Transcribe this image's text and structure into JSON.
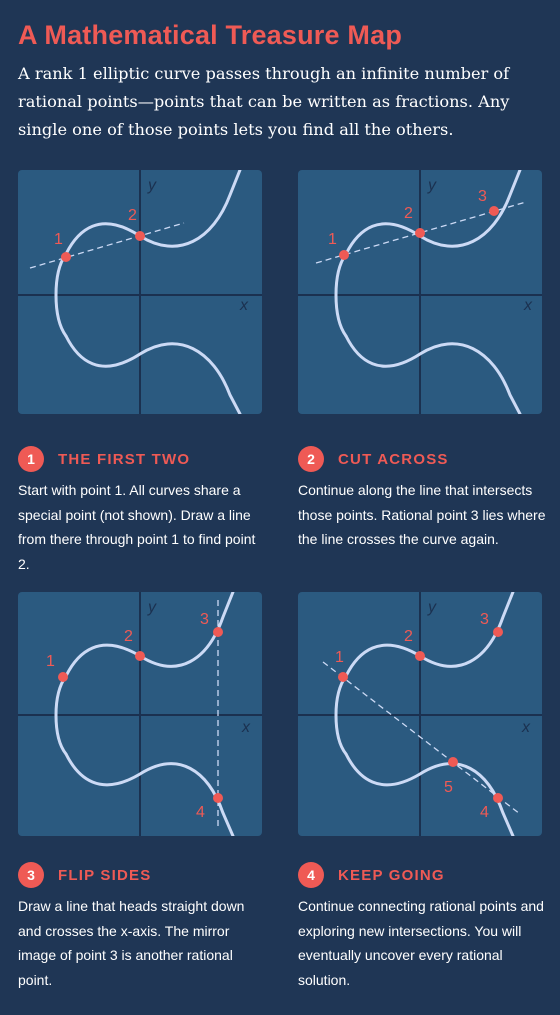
{
  "title": "A Mathematical Treasure Map",
  "intro": "A rank 1 elliptic curve passes through an infinite number of rational points—points that can be written as fractions. Any single one of those points lets you find all the others.",
  "axis_labels": {
    "x": "x",
    "y": "y"
  },
  "colors": {
    "background": "#1f3655",
    "panel": "#2b5a80",
    "curve": "#ccdaf5",
    "axis": "#1b3150",
    "accent": "#ef5a55",
    "text": "#ffffff"
  },
  "panels": [
    {
      "points": [
        "1",
        "2"
      ],
      "line": "secant"
    },
    {
      "points": [
        "1",
        "2",
        "3"
      ],
      "line": "secant"
    },
    {
      "points": [
        "1",
        "2",
        "3",
        "4"
      ],
      "line": "vertical"
    },
    {
      "points": [
        "1",
        "2",
        "3",
        "4",
        "5"
      ],
      "line": "secant"
    }
  ],
  "steps": [
    {
      "number": "1",
      "title": "THE FIRST TWO",
      "body": "Start with point 1. All curves share a special point (not shown). Draw a line from there through point 1 to find point 2."
    },
    {
      "number": "2",
      "title": "CUT ACROSS",
      "body": "Continue along the line that intersects those points. Rational point 3 lies where the line crosses the curve again."
    },
    {
      "number": "3",
      "title": "FLIP SIDES",
      "body": "Draw a line that heads straight down and crosses the x-axis. The mirror image of point 3 is another rational point."
    },
    {
      "number": "4",
      "title": "KEEP GOING",
      "body": "Continue connecting rational points and exploring new intersections. You will eventually uncover every rational solution."
    }
  ]
}
